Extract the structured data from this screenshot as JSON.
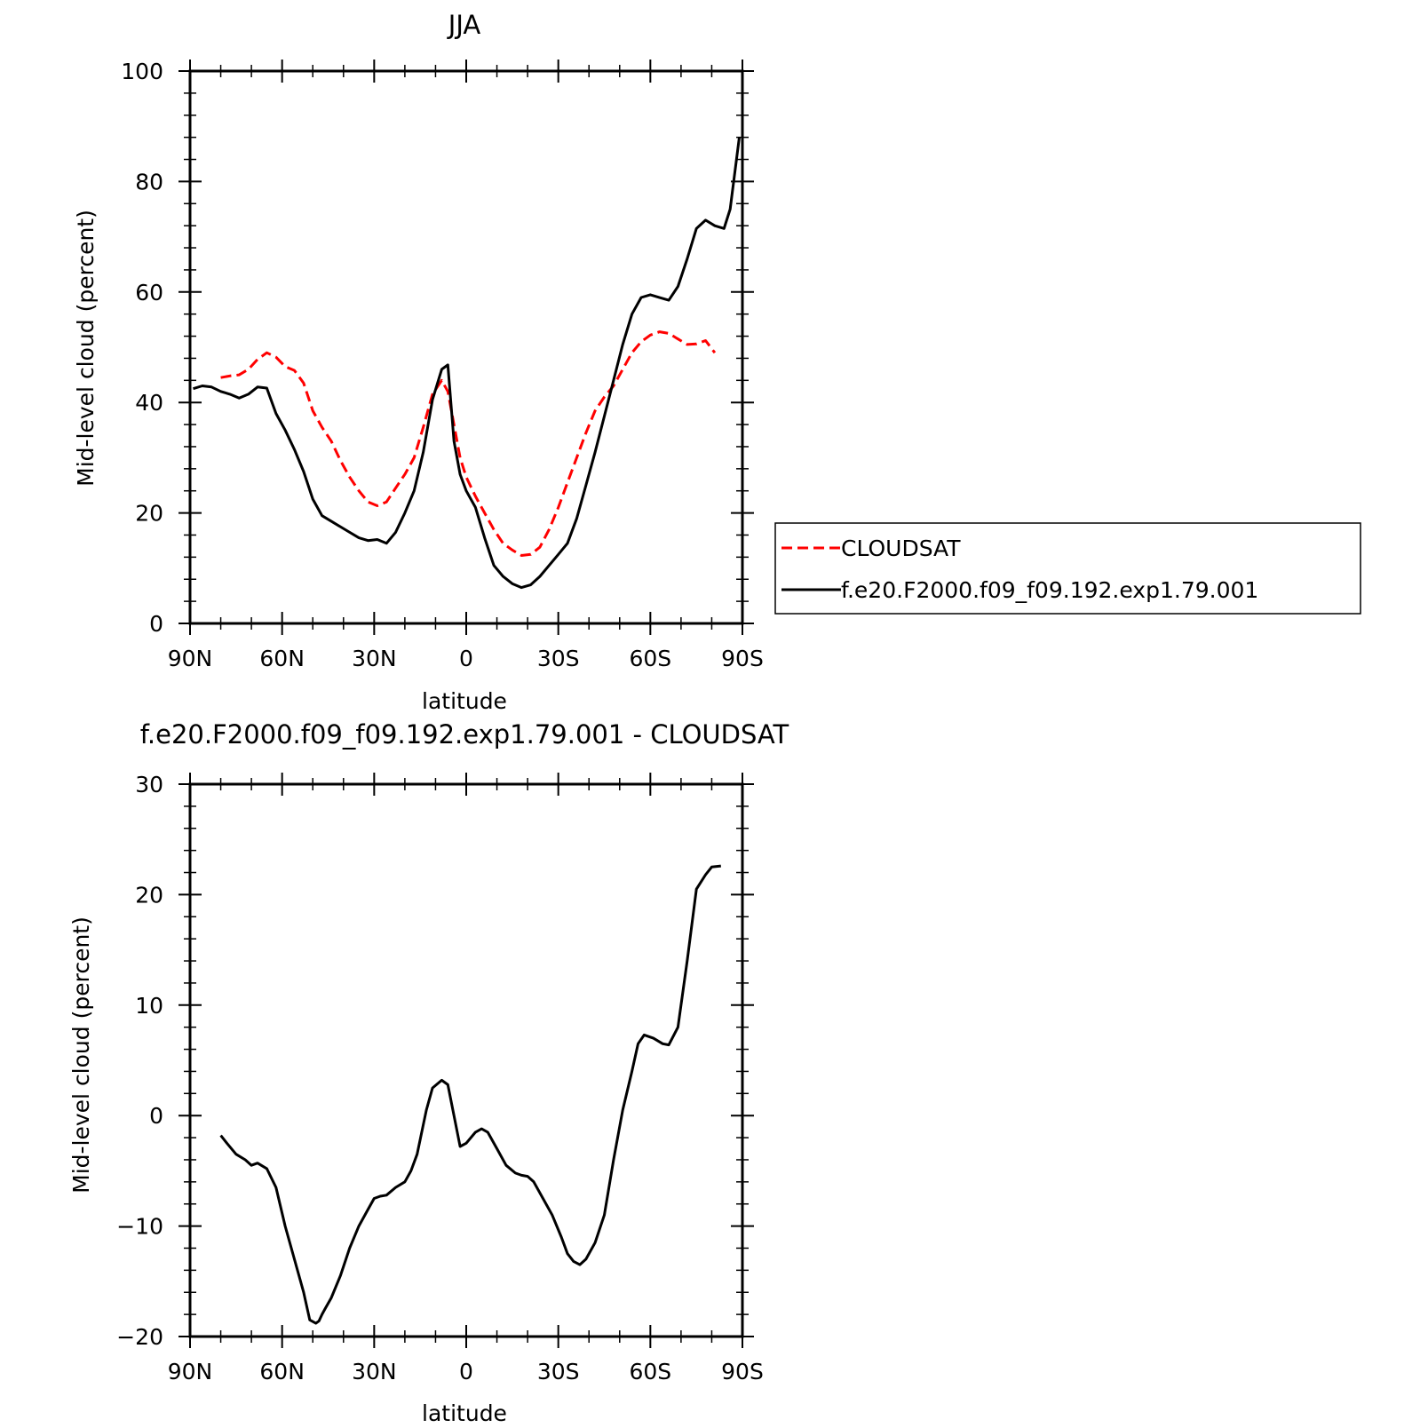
{
  "chart_data": [
    {
      "type": "line",
      "title": "JJA",
      "xlabel": "latitude",
      "ylabel": "Mid-level cloud (percent)",
      "xlim": [
        90,
        -90
      ],
      "ylim": [
        0,
        100
      ],
      "x_ticks": [
        {
          "value": 90,
          "label": "90N"
        },
        {
          "value": 60,
          "label": "60N"
        },
        {
          "value": 30,
          "label": "30N"
        },
        {
          "value": 0,
          "label": "0"
        },
        {
          "value": -30,
          "label": "30S"
        },
        {
          "value": -60,
          "label": "60S"
        },
        {
          "value": -90,
          "label": "90S"
        }
      ],
      "y_ticks": [
        {
          "value": 0,
          "label": "0"
        },
        {
          "value": 20,
          "label": "20"
        },
        {
          "value": 40,
          "label": "40"
        },
        {
          "value": 60,
          "label": "60"
        },
        {
          "value": 80,
          "label": "80"
        },
        {
          "value": 100,
          "label": "100"
        }
      ],
      "legend": {
        "position": "right",
        "entries": [
          {
            "label": "CLOUDSAT",
            "color": "#ff0000",
            "style": "dashed"
          },
          {
            "label": "f.e20.F2000.f09_f09.192.exp1.79.001",
            "color": "#000000",
            "style": "solid"
          }
        ]
      },
      "series": [
        {
          "name": "CLOUDSAT",
          "color": "#ff0000",
          "style": "dashed",
          "x": [
            80,
            77,
            74,
            71,
            68,
            65,
            62,
            59,
            56,
            53,
            50,
            47,
            44,
            41,
            38,
            35,
            32,
            29,
            26,
            23,
            20,
            17,
            14,
            11,
            8,
            6,
            4,
            2,
            0,
            -3,
            -6,
            -9,
            -12,
            -15,
            -18,
            -21,
            -24,
            -27,
            -30,
            -33,
            -36,
            -39,
            -42,
            -45,
            -48,
            -51,
            -54,
            -57,
            -60,
            -63,
            -66,
            -69,
            -72,
            -75,
            -78,
            -81
          ],
          "values": [
            44.5,
            44.8,
            45.0,
            46.0,
            47.8,
            49.0,
            48.2,
            46.5,
            45.8,
            43.5,
            38.5,
            35.5,
            33.0,
            29.5,
            26.5,
            24.0,
            22.0,
            21.3,
            22.0,
            24.5,
            27.0,
            30.0,
            35.5,
            41.5,
            44.0,
            42.0,
            36.0,
            30.0,
            26.5,
            23.0,
            20.0,
            17.0,
            14.5,
            13.3,
            12.3,
            12.5,
            13.8,
            17.0,
            21.0,
            25.5,
            30.0,
            34.5,
            38.5,
            41.0,
            43.0,
            46.0,
            49.0,
            51.0,
            52.2,
            52.8,
            52.5,
            51.5,
            50.5,
            50.6,
            51.2,
            49.0
          ]
        },
        {
          "name": "f.e20.F2000.f09_f09.192.exp1.79.001",
          "color": "#000000",
          "style": "solid",
          "x": [
            89,
            86,
            83,
            80,
            77,
            74,
            71,
            68,
            65,
            62,
            59,
            56,
            53,
            50,
            47,
            44,
            41,
            38,
            35,
            32,
            29,
            26,
            23,
            20,
            17,
            14,
            11,
            8,
            6,
            4,
            2,
            0,
            -3,
            -6,
            -9,
            -12,
            -15,
            -18,
            -21,
            -24,
            -27,
            -30,
            -33,
            -36,
            -39,
            -42,
            -45,
            -48,
            -51,
            -54,
            -57,
            -60,
            -63,
            -66,
            -69,
            -72,
            -75,
            -78,
            -81,
            -84,
            -86,
            -89
          ],
          "values": [
            42.5,
            43.0,
            42.8,
            42.0,
            41.5,
            40.8,
            41.5,
            42.8,
            42.6,
            38.0,
            35.0,
            31.5,
            27.5,
            22.5,
            19.5,
            18.5,
            17.5,
            16.5,
            15.5,
            15.0,
            15.2,
            14.5,
            16.5,
            20.0,
            24.0,
            31.0,
            40.5,
            46.0,
            46.8,
            33.0,
            27.0,
            24.0,
            21.0,
            15.5,
            10.5,
            8.5,
            7.2,
            6.5,
            7.0,
            8.5,
            10.5,
            12.5,
            14.5,
            19.0,
            25.0,
            31.0,
            37.5,
            44.0,
            50.5,
            56.0,
            59.0,
            59.5,
            59.0,
            58.5,
            61.0,
            66.0,
            71.5,
            73.0,
            72.0,
            71.5,
            75.0,
            88.0
          ]
        }
      ]
    },
    {
      "type": "line",
      "title": "f.e20.F2000.f09_f09.192.exp1.79.001 - CLOUDSAT",
      "xlabel": "latitude",
      "ylabel": "Mid-level cloud (percent)",
      "xlim": [
        90,
        -90
      ],
      "ylim": [
        -20,
        30
      ],
      "x_ticks": [
        {
          "value": 90,
          "label": "90N"
        },
        {
          "value": 60,
          "label": "60N"
        },
        {
          "value": 30,
          "label": "30N"
        },
        {
          "value": 0,
          "label": "0"
        },
        {
          "value": -30,
          "label": "30S"
        },
        {
          "value": -60,
          "label": "60S"
        },
        {
          "value": -90,
          "label": "90S"
        }
      ],
      "y_ticks": [
        {
          "value": -20,
          "label": "-20"
        },
        {
          "value": -10,
          "label": "-10"
        },
        {
          "value": 0,
          "label": "0"
        },
        {
          "value": 10,
          "label": "10"
        },
        {
          "value": 20,
          "label": "20"
        },
        {
          "value": 30,
          "label": "30"
        }
      ],
      "series": [
        {
          "color": "#000000",
          "style": "solid",
          "x": [
            80,
            78,
            75,
            72,
            70,
            68,
            65,
            62,
            59,
            56,
            53,
            51,
            49,
            48,
            47,
            46,
            44,
            41,
            38,
            35,
            32,
            30,
            28,
            26,
            23,
            20,
            18,
            16,
            13,
            11,
            8,
            6,
            4,
            2,
            0,
            -3,
            -5,
            -7,
            -10,
            -13,
            -16,
            -18,
            -20,
            -22,
            -25,
            -28,
            -31,
            -33,
            -35,
            -37,
            -39,
            -42,
            -45,
            -48,
            -51,
            -54,
            -56,
            -58,
            -61,
            -64,
            -66,
            -69,
            -72,
            -75,
            -78,
            -80,
            -83
          ],
          "values": [
            -1.8,
            -2.5,
            -3.5,
            -4.0,
            -4.5,
            -4.3,
            -4.8,
            -6.5,
            -10.0,
            -13.0,
            -16.0,
            -18.5,
            -18.8,
            -18.6,
            -18.0,
            -17.5,
            -16.5,
            -14.5,
            -12.0,
            -10.0,
            -8.5,
            -7.5,
            -7.3,
            -7.2,
            -6.5,
            -6.0,
            -5.0,
            -3.5,
            0.5,
            2.5,
            3.2,
            2.8,
            0.0,
            -2.8,
            -2.5,
            -1.5,
            -1.2,
            -1.5,
            -3.0,
            -4.5,
            -5.2,
            -5.4,
            -5.5,
            -6.0,
            -7.5,
            -9.0,
            -11.0,
            -12.5,
            -13.2,
            -13.5,
            -13.0,
            -11.5,
            -9.0,
            -4.0,
            0.5,
            4.0,
            6.5,
            7.3,
            7.0,
            6.5,
            6.4,
            8.0,
            14.0,
            20.5,
            21.8,
            22.5,
            22.6
          ]
        }
      ]
    }
  ]
}
